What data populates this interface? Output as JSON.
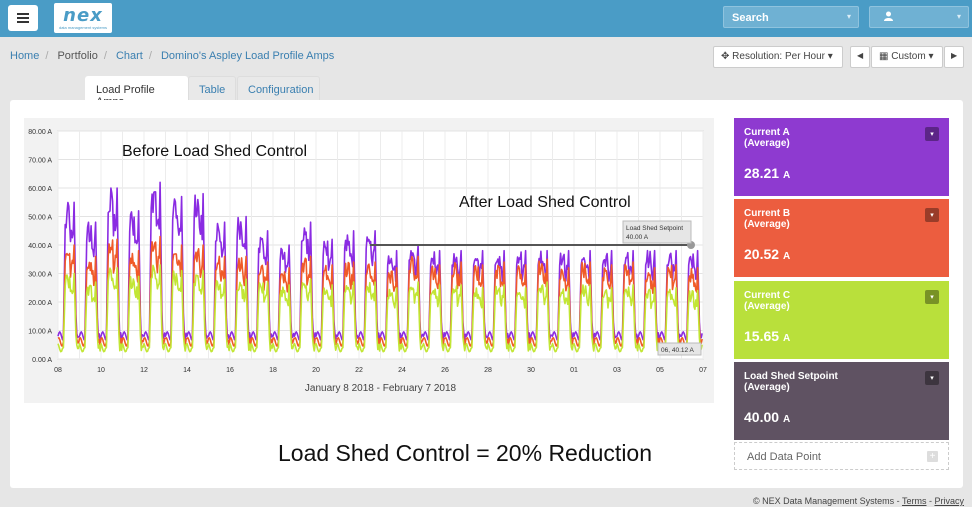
{
  "topbar": {
    "logo_text": "nex",
    "logo_sub": "data management systems",
    "search_label": "Search",
    "search_caret": "▾",
    "user_icon": "user-icon",
    "user_caret": "▾"
  },
  "breadcrumb": [
    "Home",
    "Portfolio",
    "Chart",
    "Domino's Aspley Load Profile Amps"
  ],
  "controls": {
    "resolution_label": "Resolution: Per Hour",
    "range_label": "Custom",
    "prev": "◀",
    "next": "▶"
  },
  "tabs": [
    "Load Profile Amps",
    "Table",
    "Configuration"
  ],
  "chart_data": {
    "type": "line",
    "xlabel": "January 8 2018 - February 7 2018",
    "ylabel": "",
    "ylim": [
      0,
      80
    ],
    "y_ticks": [
      "0.00 A",
      "10.00 A",
      "20.00 A",
      "30.00 A",
      "40.00 A",
      "50.00 A",
      "60.00 A",
      "70.00 A",
      "80.00 A"
    ],
    "x_ticks": [
      "08",
      "10",
      "12",
      "14",
      "16",
      "18",
      "20",
      "22",
      "24",
      "26",
      "28",
      "30",
      "01",
      "03",
      "05",
      "07"
    ],
    "series": [
      {
        "name": "Current A",
        "color": "#8a2be2",
        "daily_peaks": [
          55,
          48,
          60,
          52,
          62,
          57,
          58,
          48,
          50,
          45,
          40,
          48,
          42,
          45,
          45,
          38,
          40,
          38,
          38,
          38,
          38,
          38,
          38,
          38,
          38,
          38,
          38,
          38,
          38,
          38,
          38
        ],
        "base": 8
      },
      {
        "name": "Current B",
        "color": "#f05a28",
        "daily_peaks": [
          40,
          36,
          42,
          38,
          43,
          40,
          40,
          36,
          36,
          34,
          32,
          36,
          33,
          34,
          34,
          32,
          36,
          33,
          34,
          33,
          34,
          33,
          35,
          32,
          34,
          33,
          34,
          32,
          33,
          32,
          30
        ],
        "base": 6
      },
      {
        "name": "Current C",
        "color": "#c2e635",
        "daily_peaks": [
          30,
          27,
          32,
          29,
          33,
          31,
          31,
          28,
          28,
          27,
          26,
          28,
          26,
          27,
          27,
          25,
          27,
          26,
          26,
          25,
          26,
          25,
          27,
          25,
          26,
          25,
          26,
          25,
          25,
          24,
          23
        ],
        "base": 4
      },
      {
        "name": "Load Shed Setpoint",
        "color": "#555555",
        "start_day": 14.5,
        "value": 40
      }
    ],
    "annotations": {
      "before": "Before Load Shed Control",
      "after": "After Load Shed Control",
      "setpoint_label": "Load Shed Setpoint",
      "setpoint_value": "40.00 A",
      "cursor_label": "06, 40.12 A"
    },
    "grid": true
  },
  "panels": [
    {
      "name": "Current A",
      "sub": "(Average)",
      "value": "28.21",
      "unit": "A",
      "color": "#8e3ad0"
    },
    {
      "name": "Current B",
      "sub": "(Average)",
      "value": "20.52",
      "unit": "A",
      "color": "#ec5d3f"
    },
    {
      "name": "Current C",
      "sub": "(Average)",
      "value": "15.65",
      "unit": "A",
      "color": "#b9e03b"
    },
    {
      "name": "Load Shed Setpoint",
      "sub": "(Average)",
      "value": "40.00",
      "unit": "A",
      "color": "#5f5262"
    }
  ],
  "panel_dd": "▾",
  "add_data_point": "Add Data Point",
  "add_plus": "+",
  "caption": "Load Shed Control = 20% Reduction",
  "footer": {
    "copyright": "© NEX Data Management Systems",
    "sep1": " - ",
    "terms": "Terms",
    "sep2": " - ",
    "privacy": "Privacy"
  }
}
